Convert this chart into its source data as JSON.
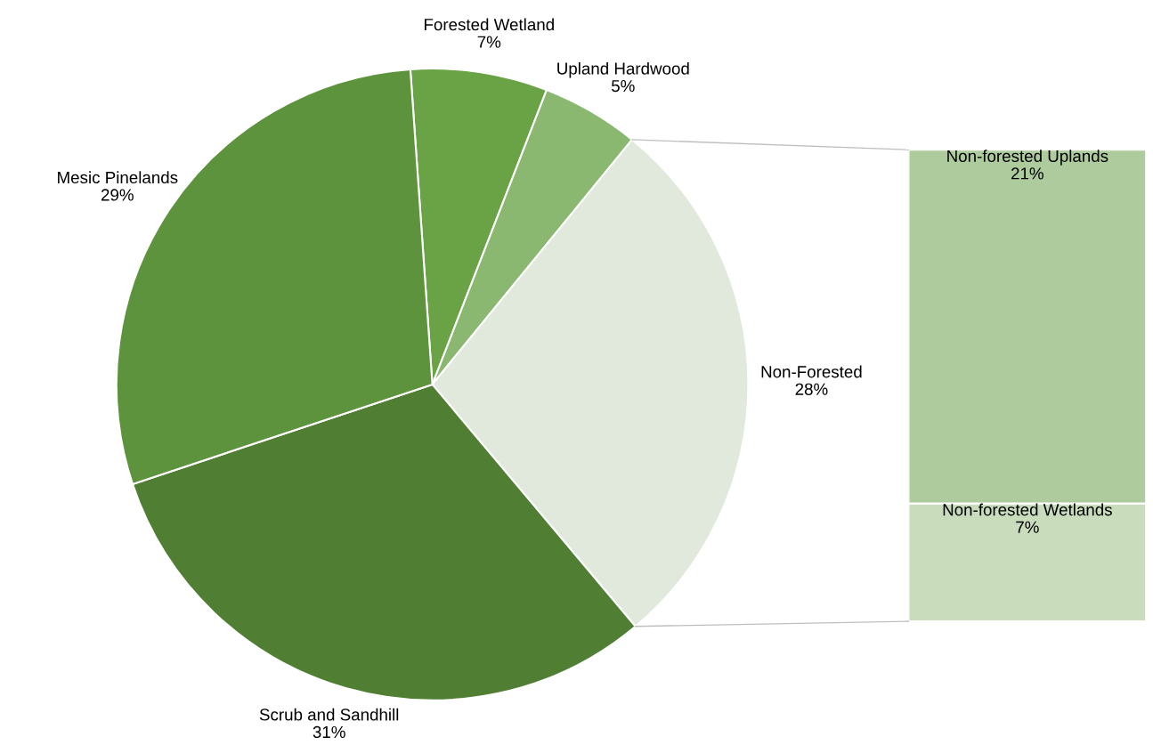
{
  "chart_data": [
    {
      "type": "pie",
      "categories": [
        "Forested Wetland",
        "Upland Hardwood",
        "Non-Forested",
        "Scrub and Sandhill",
        "Mesic Pinelands"
      ],
      "values": [
        7,
        5,
        28,
        31,
        29
      ],
      "value_labels": [
        "7%",
        "5%",
        "28%",
        "31%",
        "29%"
      ],
      "colors": [
        "#6aa345",
        "#8ab870",
        "#e0e9dc",
        "#507f34",
        "#5e933d"
      ]
    },
    {
      "type": "bar",
      "stacked": true,
      "categories": [
        null
      ],
      "series": [
        {
          "name": "Non-forested Wetlands",
          "color": "#c9dcbc",
          "values": [
            7
          ],
          "value_labels": [
            "7%"
          ]
        },
        {
          "name": "Non-forested Uplands",
          "color": "#aecb9e",
          "values": [
            21
          ],
          "value_labels": [
            "21%"
          ]
        }
      ]
    }
  ]
}
